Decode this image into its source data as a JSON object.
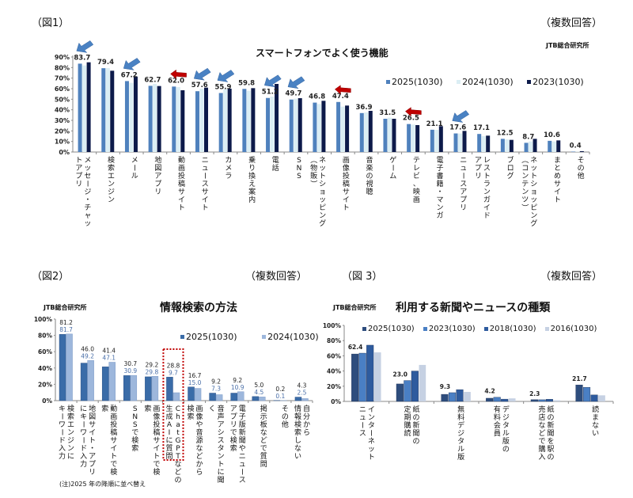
{
  "fig1": {
    "fig_label": "（図1）",
    "multi_answer": "（複数回答）",
    "source": "JTB総合研究所"
  },
  "fig2": {
    "fig_label": "（図2）",
    "multi_answer": "（複数回答）",
    "source": "JTB総合研究所",
    "note": "(注)2025 年の降順に並べ替え"
  },
  "fig3": {
    "fig_label": "（図 3）",
    "multi_answer": "（複数回答）",
    "source": "JTB総合研究所"
  },
  "colors": {
    "fig1": [
      "#4f81bd",
      "#dbeef4",
      "#0d1a4a"
    ],
    "fig2": [
      "#3a6ca8",
      "#9db7dc"
    ],
    "fig3": [
      "#2e4d7d",
      "#4a7fc4",
      "#2e5b9e",
      "#c6d1e3"
    ],
    "arrow_blue": "#4a82c3",
    "arrow_red": "#c00000",
    "highlight_box": "#c00000"
  },
  "chart_data": [
    {
      "type": "bar",
      "title": "スマートフォンでよく使う機能",
      "xlabel": "",
      "ylabel": "",
      "ylim": [
        0,
        90
      ],
      "yticks": [
        "0%",
        "10%",
        "20%",
        "30%",
        "40%",
        "50%",
        "60%",
        "70%",
        "80%",
        "90%"
      ],
      "grid": false,
      "legend_position": "top-right",
      "categories": [
        "メッセージ・チャッ\nトアプリ",
        "検索エンジン",
        "メール",
        "地図アプリ",
        "動画投稿サイト",
        "ニュースサイト",
        "カメラ",
        "乗り換え案内",
        "電話",
        "SNS",
        "ネットショッピング\n（物販）",
        "画像投稿サイト",
        "音楽の視聴",
        "ゲーム",
        "テレビ、映画",
        "電子書籍・マンガ",
        "ニュースアプリ",
        "レストランガイド\nアプリ",
        "ブログ",
        "ネットショッピング\n（コンテンツ）",
        "まとめサイト",
        "その他"
      ],
      "series": [
        {
          "name": "2025(1030)",
          "values": [
            83.7,
            79.4,
            67.2,
            62.7,
            62.0,
            57.6,
            55.9,
            59.8,
            51.2,
            49.7,
            46.8,
            47.4,
            36.9,
            31.5,
            26.5,
            21.1,
            17.6,
            17.1,
            12.5,
            8.7,
            10.6,
            0.4
          ]
        },
        {
          "name": "2024(1030)",
          "values": [
            82.0,
            79.5,
            65.5,
            64.5,
            61.5,
            60.0,
            59.5,
            58.0,
            52.5,
            50.5,
            45.5,
            43.0,
            37.5,
            32.5,
            26.0,
            21.0,
            17.5,
            15.0,
            12.0,
            10.0,
            10.0,
            0.3
          ]
        },
        {
          "name": "2023(1030)",
          "values": [
            85.0,
            77.0,
            71.5,
            62.5,
            58.5,
            61.0,
            60.0,
            60.5,
            64.5,
            51.0,
            48.5,
            44.0,
            39.0,
            31.5,
            25.5,
            24.5,
            20.0,
            15.5,
            11.5,
            12.5,
            11.0,
            0.8
          ]
        }
      ],
      "labeled_series": "2025(1030)",
      "annotations": [
        {
          "category": "メッセージ・チャッ\nトアプリ",
          "type": "arrow",
          "color": "blue"
        },
        {
          "category": "メール",
          "type": "arrow",
          "color": "blue"
        },
        {
          "category": "動画投稿サイト",
          "type": "arrow",
          "color": "red"
        },
        {
          "category": "ニュースサイト",
          "type": "arrow",
          "color": "blue"
        },
        {
          "category": "カメラ",
          "type": "arrow",
          "color": "blue"
        },
        {
          "category": "電話",
          "type": "arrow",
          "color": "blue"
        },
        {
          "category": "SNS",
          "type": "arrow",
          "color": "blue"
        },
        {
          "category": "画像投稿サイト",
          "type": "arrow",
          "color": "red"
        },
        {
          "category": "テレビ、映画",
          "type": "arrow",
          "color": "red"
        },
        {
          "category": "ニュースアプリ",
          "type": "arrow",
          "color": "blue"
        }
      ]
    },
    {
      "type": "bar",
      "title": "情報検索の方法",
      "xlabel": "",
      "ylabel": "",
      "ylim": [
        0,
        100
      ],
      "yticks": [
        "0%",
        "20%",
        "40%",
        "60%",
        "80%",
        "100%"
      ],
      "grid": false,
      "legend_position": "top-right",
      "categories": [
        "検索エンジンに\nキーワード入力",
        "地図サイト・アプリ\nにキーワード入力",
        "動画投稿サイトで検\n索",
        "SNSで検索",
        "画像投稿サイトで検\n索",
        "ChatGPTなどの\n生成AIに質問",
        "画像や音源などから\n検索",
        "音声アシスタントに聞\nく",
        "電子版新聞やニュース\nアプリで検索",
        "掲示板などで質問",
        "その他",
        "自分から\n情報検索しない"
      ],
      "series": [
        {
          "name": "2025(1030)",
          "values": [
            81.2,
            46.0,
            41.4,
            30.7,
            29.2,
            28.8,
            16.7,
            9.2,
            9.2,
            5.0,
            0.2,
            4.3
          ]
        },
        {
          "name": "2024(1030)",
          "values": [
            81.7,
            49.2,
            47.1,
            30.9,
            29.8,
            9.7,
            15.0,
            7.3,
            10.9,
            4.5,
            0.1,
            2.5
          ]
        }
      ],
      "highlight_category": "ChatGPTなどの\n生成AIに質問"
    },
    {
      "type": "bar",
      "title": "利用する新聞やニュースの種類",
      "xlabel": "",
      "ylabel": "",
      "ylim": [
        0,
        100
      ],
      "yticks": [
        "0%",
        "20%",
        "40%",
        "60%",
        "80%",
        "100%"
      ],
      "grid": false,
      "legend_position": "top",
      "categories": [
        "インターネット\nニュース",
        "紙の新聞の\n定期購読",
        "無料デジタル版",
        "デジタル版の\n有料会員",
        "紙の新聞を駅の\n売店などで購入",
        "読まない"
      ],
      "series": [
        {
          "name": "2025(1030)",
          "values": [
            62.4,
            23.0,
            9.3,
            4.2,
            2.3,
            21.7
          ]
        },
        {
          "name": "2023(1030)",
          "values": [
            63.5,
            27.5,
            11.5,
            5.5,
            2.2,
            18.5
          ]
        },
        {
          "name": "2018(1030)",
          "values": [
            74.0,
            40.0,
            15.5,
            3.0,
            2.8,
            8.5
          ]
        },
        {
          "name": "2016(1030)",
          "values": [
            64.5,
            48.0,
            12.5,
            4.0,
            1.5,
            8.0
          ]
        }
      ]
    }
  ]
}
